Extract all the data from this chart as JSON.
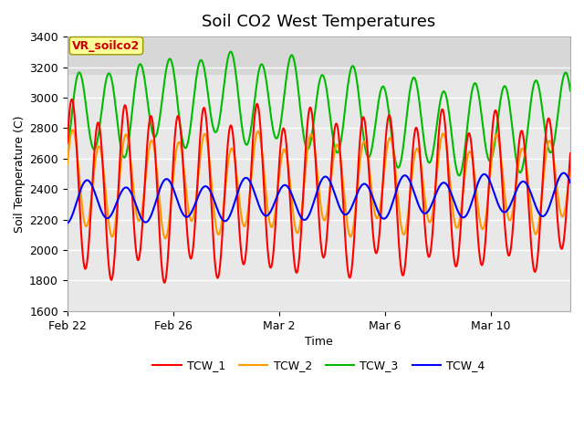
{
  "title": "Soil CO2 West Temperatures",
  "xlabel": "Time",
  "ylabel": "Soil Temperature (C)",
  "ylim": [
    1600,
    3400
  ],
  "yticks": [
    1600,
    1800,
    2000,
    2200,
    2400,
    2600,
    2800,
    3000,
    3200,
    3400
  ],
  "plot_bg": "#e8e8e8",
  "annotation_label": "VR_soilco2",
  "annotation_color": "#cc0000",
  "annotation_bg": "#ffff99",
  "annotation_border": "#999900",
  "legend_labels": [
    "TCW_1",
    "TCW_2",
    "TCW_3",
    "TCW_4"
  ],
  "line_colors": [
    "#ff0000",
    "#ff9900",
    "#00bb00",
    "#0000ff"
  ],
  "line_width": 1.5
}
